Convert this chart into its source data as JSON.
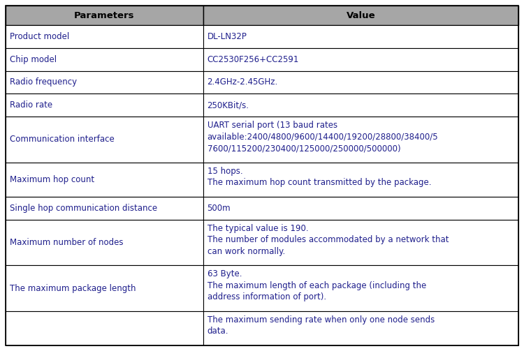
{
  "header": [
    "Parameters",
    "Value"
  ],
  "header_bg": "#a6a6a6",
  "header_text_color": "#000000",
  "row_bg": "#ffffff",
  "border_color": "#000000",
  "text_color": "#1f1f8c",
  "rows": [
    {
      "param": "Product model",
      "value": "DL-LN32P",
      "param_lines": 1,
      "value_lines": 1
    },
    {
      "param": "Chip model",
      "value": "CC2530F256+CC2591",
      "param_lines": 1,
      "value_lines": 1
    },
    {
      "param": "Radio frequency",
      "value": "2.4GHz-2.45GHz.",
      "param_lines": 1,
      "value_lines": 1
    },
    {
      "param": "Radio rate",
      "value": "250KBit/s.",
      "param_lines": 1,
      "value_lines": 1
    },
    {
      "param": "Communication interface",
      "value": "UART serial port (13 baud rates\navailable:2400/4800/9600/14400/19200/28800/38400/5\n7600/115200/230400/125000/250000/500000)",
      "param_lines": 1,
      "value_lines": 3
    },
    {
      "param": "Maximum hop count",
      "value": "15 hops.\nThe maximum hop count transmitted by the package.",
      "param_lines": 1,
      "value_lines": 2
    },
    {
      "param": "Single hop communication distance",
      "value": "500m",
      "param_lines": 1,
      "value_lines": 1
    },
    {
      "param": "Maximum number of nodes",
      "value": "The typical value is 190.\nThe number of modules accommodated by a network that\ncan work normally.",
      "param_lines": 1,
      "value_lines": 3
    },
    {
      "param": "The maximum package length",
      "value": "63 Byte.\nThe maximum length of each package (including the\naddress information of port).",
      "param_lines": 1,
      "value_lines": 3
    },
    {
      "param": "",
      "value": "The maximum sending rate when only one node sends\ndata.",
      "param_lines": 1,
      "value_lines": 2
    }
  ],
  "col_split": 0.385,
  "figsize": [
    7.5,
    5.03
  ],
  "dpi": 100,
  "font_size": 8.5,
  "header_font_size": 9.5
}
